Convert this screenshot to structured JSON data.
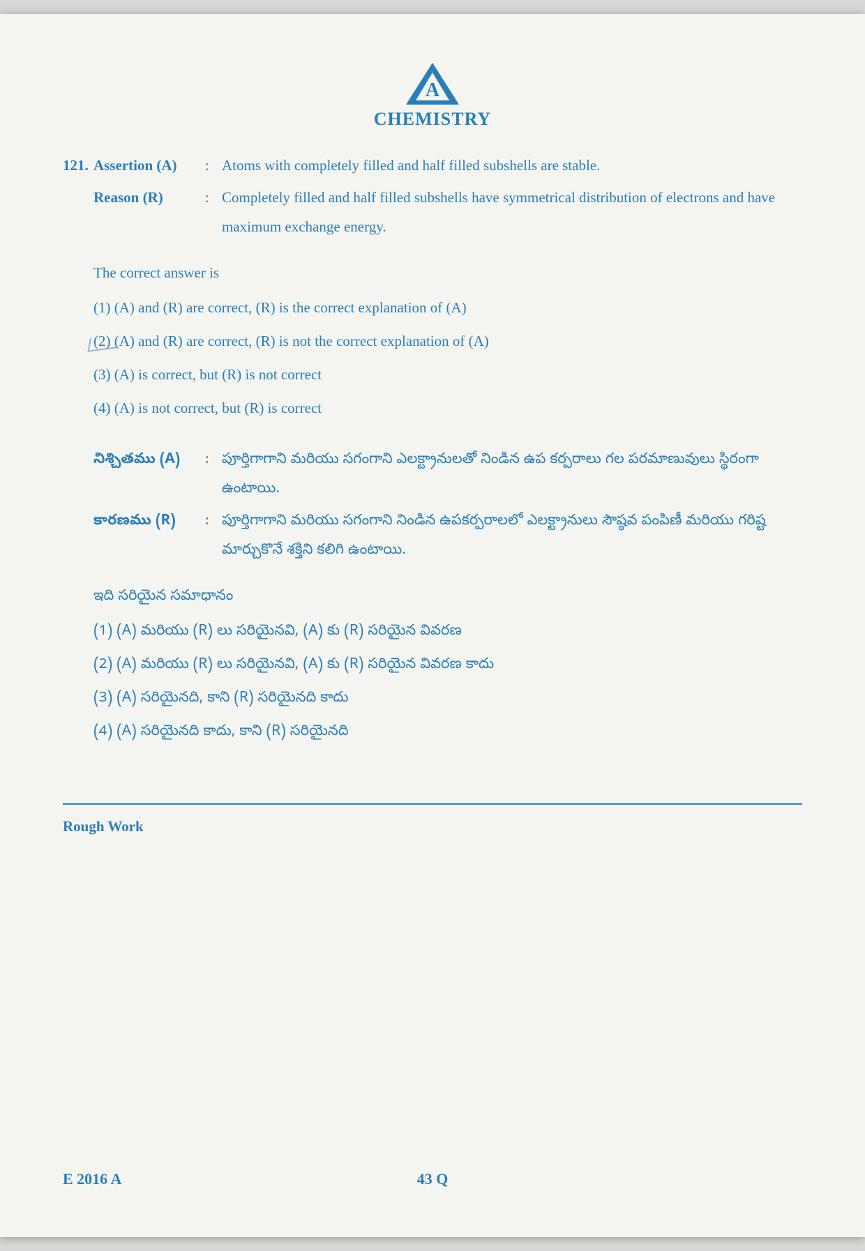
{
  "header": {
    "logo_letter": "A",
    "subject": "CHEMISTRY"
  },
  "question": {
    "number": "121.",
    "assertion_label": "Assertion (A)",
    "assertion_text": "Atoms with completely filled and half filled subshells are stable.",
    "reason_label": "Reason (R)",
    "reason_text": "Completely filled and half filled subshells have symmetrical distribution of electrons and have maximum exchange energy.",
    "prompt": "The correct answer is",
    "options": [
      "(1)  (A) and (R) are correct, (R) is the correct explanation of (A)",
      "(2)  (A) and (R) are correct, (R) is not the correct explanation of (A)",
      "(3)  (A) is correct, but (R) is not correct",
      "(4)  (A) is not correct, but (R) is correct"
    ],
    "marked_option_index": 1
  },
  "telugu": {
    "assertion_label": "నిశ్చితము (A)",
    "assertion_text": "పూర్తిగాగాని మరియు సగంగాని ఎలక్ట్రానులతో నిండిన ఉప కర్పరాలు గల పరమాణువులు స్థిరంగా ఉంటాయి.",
    "reason_label": "కారణము (R)",
    "reason_text": "పూర్తిగాగాని మరియు సగంగాని నిండిన ఉపకర్పరాలలో ఎలక్ట్రానులు సౌష్ఠవ పంపిణీ మరియు గరిష్ట మార్చుకొనే శక్తిని కలిగి ఉంటాయి.",
    "prompt": "ఇది సరియైన సమాధానం",
    "options": [
      "(1)  (A) మరియు (R) లు సరియైనవి, (A) కు (R) సరియైన వివరణ",
      "(2)  (A) మరియు (R) లు సరియైనవి, (A) కు (R) సరియైన వివరణ కాదు",
      "(3)  (A) సరియైనది, కాని (R) సరియైనది కాదు",
      "(4)  (A) సరియైనది కాదు, కాని (R) సరియైనది"
    ]
  },
  "rough_work": "Rough Work",
  "footer": {
    "left": "E 2016 A",
    "center": "43 Q"
  },
  "colors": {
    "text": "#2a7eb8",
    "page_bg": "#f4f5f0"
  }
}
